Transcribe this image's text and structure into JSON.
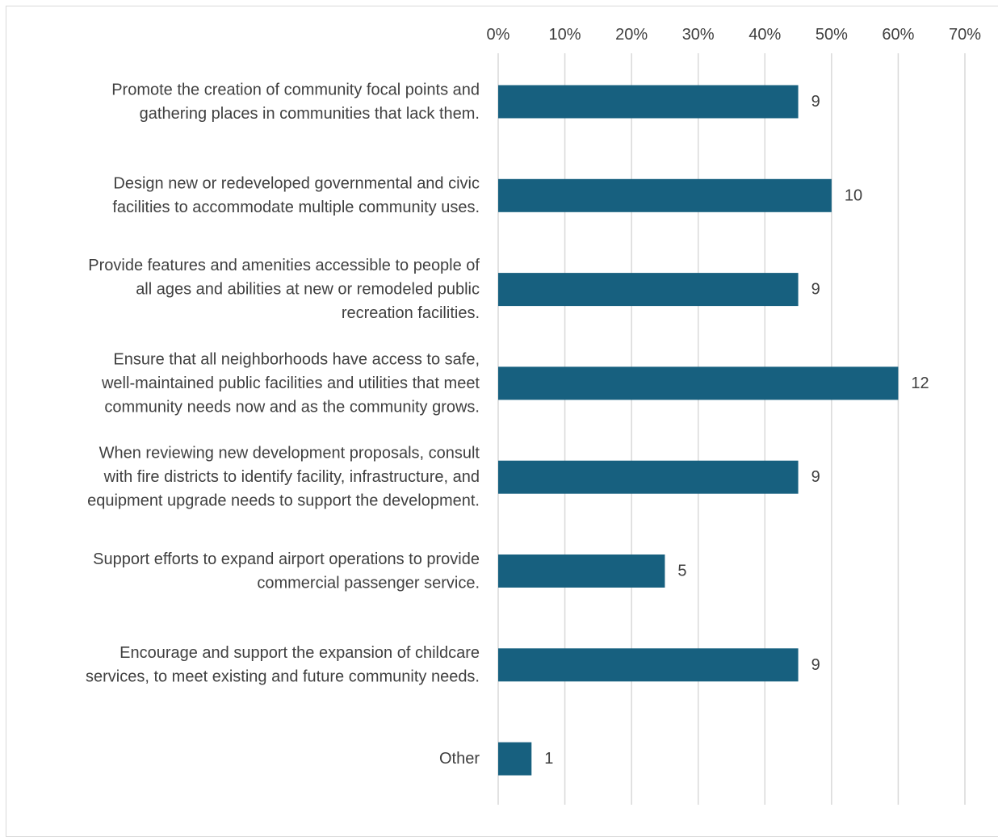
{
  "chart_data": {
    "type": "bar",
    "orientation": "horizontal",
    "categories": [
      [
        "Promote the creation of community focal points and",
        "gathering places in communities that lack them."
      ],
      [
        "Design new or redeveloped governmental and civic",
        "facilities to accommodate multiple community uses."
      ],
      [
        "Provide features and amenities accessible to people of",
        "all ages and abilities at new or remodeled public",
        "recreation facilities."
      ],
      [
        "Ensure that all neighborhoods have access to safe,",
        "well-maintained public facilities and utilities that meet",
        "community needs now and as the community grows."
      ],
      [
        "When reviewing new development proposals, consult",
        "with fire districts to identify facility, infrastructure, and",
        "equipment upgrade needs to support the development."
      ],
      [
        "Support efforts to expand airport operations to provide",
        "commercial passenger service."
      ],
      [
        "Encourage and support the expansion of childcare",
        "services, to meet existing and future community needs."
      ],
      [
        "Other"
      ]
    ],
    "values": [
      0.45,
      0.5,
      0.45,
      0.6,
      0.45,
      0.25,
      0.45,
      0.05
    ],
    "data_labels": [
      "9",
      "10",
      "9",
      "12",
      "9",
      "5",
      "9",
      "1"
    ],
    "x_tick_labels": [
      "0%",
      "10%",
      "20%",
      "30%",
      "40%",
      "50%",
      "60%",
      "70%"
    ],
    "xlim": [
      0,
      0.7
    ],
    "x_axis_position": "top",
    "grid": true,
    "legend": "none",
    "title": "",
    "xlabel": "",
    "ylabel": "",
    "bar_color": "#17607f",
    "grid_color": "#d9d9d9",
    "text_color": "#404040"
  }
}
